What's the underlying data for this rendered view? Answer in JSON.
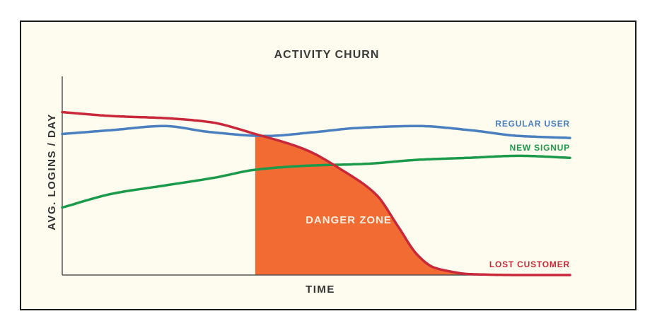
{
  "chart_data": {
    "type": "line",
    "title": "ACTIVITY CHURN",
    "xlabel": "TIME",
    "ylabel": "AVG. LOGINS / DAY",
    "xlim": [
      0,
      100
    ],
    "ylim": [
      0,
      100
    ],
    "grid": false,
    "legend": "inline labels at right end of each line",
    "series": [
      {
        "name": "REGULAR USER",
        "color": "#4a7fc0",
        "x": [
          0,
          10,
          20,
          29,
          40,
          50,
          58,
          70,
          80,
          90,
          100
        ],
        "y": [
          71,
          73,
          75,
          72,
          70,
          72,
          74,
          75,
          73,
          70,
          69
        ]
      },
      {
        "name": "NEW SIGNUP",
        "color": "#1a9a4a",
        "x": [
          0,
          10,
          20,
          30,
          38,
          48,
          60,
          70,
          80,
          90,
          100
        ],
        "y": [
          34,
          41,
          45,
          49,
          53,
          55,
          56,
          58,
          59,
          60,
          59
        ]
      },
      {
        "name": "LOST CUSTOMER",
        "color": "#c8283a",
        "x": [
          0,
          10,
          20,
          29,
          38,
          48,
          55,
          62,
          66,
          70,
          73,
          76,
          80,
          90,
          100
        ],
        "y": [
          82,
          80,
          79,
          77,
          71,
          63,
          53,
          40,
          25,
          10,
          4,
          2,
          0.5,
          0,
          0
        ]
      }
    ],
    "annotations": [
      {
        "type": "shaded_region",
        "label": "DANGER ZONE",
        "color": "#f26b32",
        "x_start": 38,
        "under_series": "LOST CUSTOMER"
      }
    ]
  }
}
